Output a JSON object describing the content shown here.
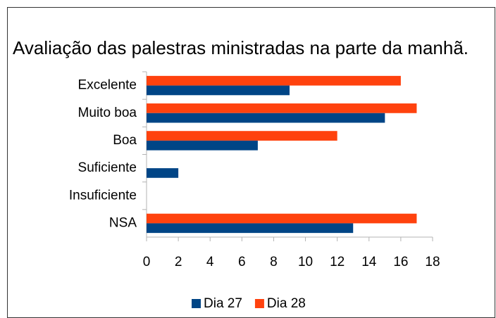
{
  "chart_data": {
    "type": "hbar",
    "title": "Avaliação das palestras ministradas na parte da manhã.",
    "categories": [
      "Excelente",
      "Muito boa",
      "Boa",
      "Suficiente",
      "Insuficiente",
      "NSA"
    ],
    "series": [
      {
        "name": "Dia 27",
        "color": "#004586",
        "values": [
          9,
          15,
          7,
          2,
          0,
          13
        ]
      },
      {
        "name": "Dia 28",
        "color": "#ff420e",
        "values": [
          16,
          17,
          12,
          0,
          0,
          17
        ]
      }
    ],
    "xlim": [
      0,
      18
    ],
    "xticks": [
      0,
      2,
      4,
      6,
      8,
      10,
      12,
      14,
      16,
      18
    ],
    "grid": false,
    "legend": "bottom"
  }
}
